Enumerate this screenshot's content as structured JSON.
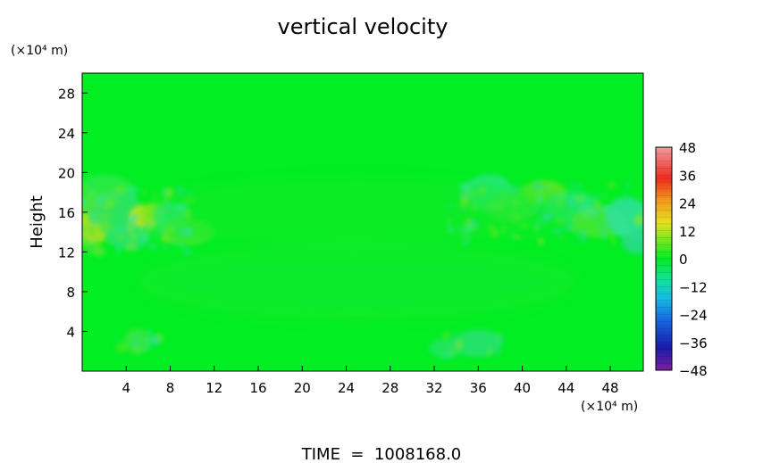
{
  "chart_data": {
    "type": "heatmap",
    "title": "vertical velocity",
    "ylabel": "Height",
    "y_unit_label": "(×10⁴ m)",
    "x_unit_label": "(×10⁴ m)",
    "footer": "TIME  =  1008168.0",
    "xlim": [
      0,
      51
    ],
    "ylim": [
      0,
      30
    ],
    "x_ticks": [
      4,
      8,
      12,
      16,
      20,
      24,
      28,
      32,
      36,
      40,
      44,
      48
    ],
    "y_ticks": [
      4,
      8,
      12,
      16,
      20,
      24,
      28
    ],
    "colorbar": {
      "ticks": [
        48,
        36,
        24,
        12,
        0,
        -12,
        -24,
        -36,
        -48
      ],
      "range": [
        -48,
        48
      ]
    },
    "field_description": "near-zero vertical velocity almost everywhere (green); weak positive/negative perturbations concentrated around height 12–18 near x 0–10 and x 34–51, and faint near the bottom near x 4–6 and x 34–38"
  }
}
